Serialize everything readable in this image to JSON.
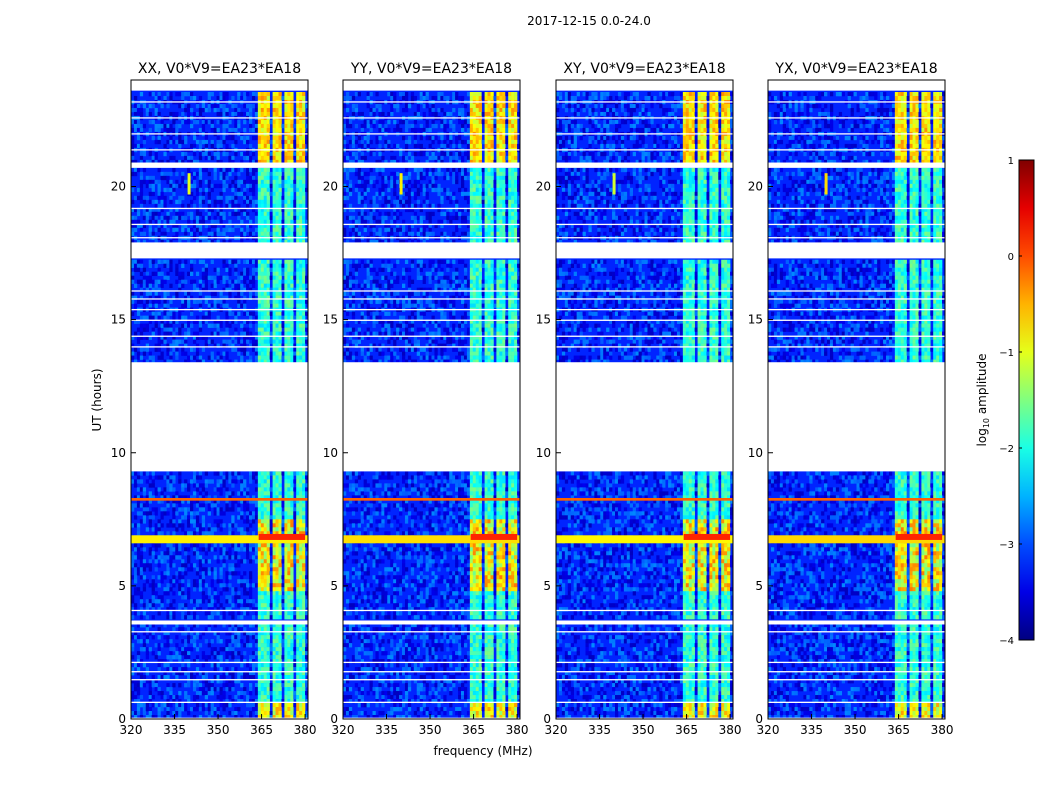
{
  "chart_data": {
    "type": "heatmap",
    "suptitle": "2017-12-15 0.0-24.0",
    "xlabel": "frequency (MHz)",
    "ylabel": "UT (hours)",
    "xlim": [
      320,
      381
    ],
    "ylim": [
      0,
      24
    ],
    "x_ticks": [
      320,
      335,
      350,
      365,
      380
    ],
    "y_ticks": [
      0,
      5,
      10,
      15,
      20
    ],
    "panels": [
      {
        "title": "XX, V0*V9=EA23*EA18",
        "feature_shift": 0.0
      },
      {
        "title": "YY, V0*V9=EA23*EA18",
        "feature_shift": 0.4
      },
      {
        "title": "XY, V0*V9=EA23*EA18",
        "feature_shift": -0.2
      },
      {
        "title": "YX, V0*V9=EA23*EA18",
        "feature_shift": 0.6
      }
    ],
    "colorbar": {
      "label": "log10 amplitude",
      "label_main": "log",
      "label_sub": "10",
      "label_rest": " amplitude",
      "range": [
        -4,
        1
      ],
      "ticks": [
        1,
        0,
        -1,
        -2,
        -3,
        -4
      ],
      "colormap": "jet",
      "tick_texts": [
        "1",
        "0",
        "−1",
        "−2",
        "−3",
        "−4"
      ]
    },
    "data_gaps_ut": [
      [
        9.3,
        13.4
      ],
      [
        17.3,
        17.9
      ],
      [
        20.7,
        20.9
      ],
      [
        23.6,
        24.0
      ],
      [
        3.55,
        3.7
      ],
      [
        0.0,
        0.05
      ]
    ],
    "strong_rfi_bands_mhz": [
      [
        364,
        368
      ],
      [
        369,
        372
      ],
      [
        373,
        376
      ],
      [
        377,
        380
      ]
    ],
    "broadband_rfi_ut": [
      6.6,
      6.9,
      8.2,
      8.3
    ],
    "background_log_amplitude": -3.2,
    "rfi_log_amplitude": -1.5,
    "peak_log_amplitude": 0.2
  }
}
